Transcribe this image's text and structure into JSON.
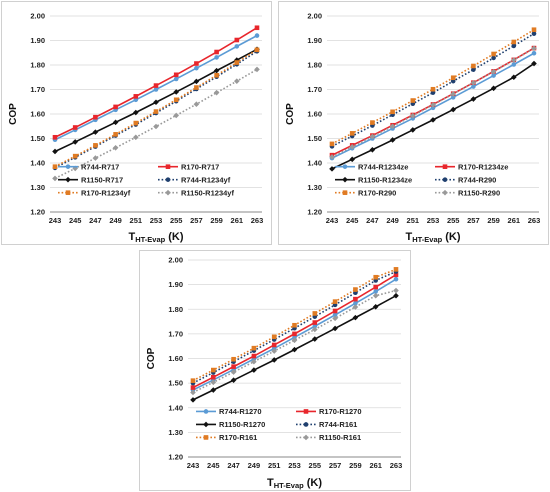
{
  "chart_data": [
    {
      "type": "line",
      "ylabel": "COP",
      "xlabel_main": "T",
      "xlabel_sub": "HT-Evap",
      "xlabel_unit": "(K)",
      "x": [
        243,
        245,
        247,
        249,
        251,
        253,
        255,
        257,
        259,
        261,
        263
      ],
      "ylim": [
        1.2,
        2.0
      ],
      "yticks": [
        "1.20",
        "1.30",
        "1.40",
        "1.50",
        "1.60",
        "1.70",
        "1.80",
        "1.90",
        "2.00"
      ],
      "grid": true,
      "legend": "inside-lower-right",
      "series": [
        {
          "name": "R744-R717",
          "color": "#5b9bd5",
          "style": "solid",
          "marker": "circle",
          "values": [
            1.495,
            1.535,
            1.576,
            1.617,
            1.658,
            1.7,
            1.743,
            1.787,
            1.831,
            1.876,
            1.92
          ]
        },
        {
          "name": "R170-R717",
          "color": "#e8262c",
          "style": "solid",
          "marker": "square",
          "values": [
            1.505,
            1.545,
            1.587,
            1.629,
            1.672,
            1.716,
            1.76,
            1.806,
            1.853,
            1.902,
            1.952
          ]
        },
        {
          "name": "R1150-R717",
          "color": "#111111",
          "style": "solid",
          "marker": "diamond",
          "values": [
            1.447,
            1.486,
            1.526,
            1.566,
            1.606,
            1.648,
            1.69,
            1.733,
            1.777,
            1.82,
            1.864
          ]
        },
        {
          "name": "R744-R1234yf",
          "color": "#1f3f6e",
          "style": "dotted",
          "marker": "circle",
          "values": [
            1.38,
            1.423,
            1.467,
            1.512,
            1.557,
            1.604,
            1.652,
            1.702,
            1.752,
            1.803,
            1.856
          ]
        },
        {
          "name": "R170-R1234yf",
          "color": "#e07b23",
          "style": "dotted",
          "marker": "square",
          "values": [
            1.385,
            1.428,
            1.472,
            1.517,
            1.563,
            1.61,
            1.658,
            1.708,
            1.758,
            1.81,
            1.862
          ]
        },
        {
          "name": "R1150-R1234yf",
          "color": "#999999",
          "style": "dotted",
          "marker": "diamond",
          "values": [
            1.337,
            1.378,
            1.42,
            1.462,
            1.505,
            1.549,
            1.594,
            1.64,
            1.687,
            1.734,
            1.782
          ]
        }
      ]
    },
    {
      "type": "line",
      "ylabel": "COP",
      "xlabel_main": "T",
      "xlabel_sub": "HT-Evap",
      "xlabel_unit": "(K)",
      "x": [
        243,
        245,
        247,
        249,
        251,
        253,
        255,
        257,
        259,
        261,
        263
      ],
      "ylim": [
        1.2,
        2.0
      ],
      "yticks": [
        "1.20",
        "1.30",
        "1.40",
        "1.50",
        "1.60",
        "1.70",
        "1.80",
        "1.90",
        "2.00"
      ],
      "grid": true,
      "legend": "inside-lower-right",
      "series": [
        {
          "name": "R744-R1234ze",
          "color": "#5b9bd5",
          "style": "solid",
          "marker": "circle",
          "values": [
            1.42,
            1.46,
            1.5,
            1.541,
            1.582,
            1.625,
            1.668,
            1.712,
            1.757,
            1.802,
            1.848
          ]
        },
        {
          "name": "R170-R1234ze",
          "color": "#e8262c",
          "style": "solid",
          "marker": "square",
          "values": [
            1.432,
            1.472,
            1.512,
            1.554,
            1.596,
            1.639,
            1.683,
            1.728,
            1.774,
            1.821,
            1.869
          ]
        },
        {
          "name": "R1150-R1234ze",
          "color": "#111111",
          "style": "solid",
          "marker": "diamond",
          "values": [
            1.376,
            1.415,
            1.454,
            1.494,
            1.535,
            1.576,
            1.618,
            1.661,
            1.705,
            1.75,
            1.806
          ]
        },
        {
          "name": "R744-R290",
          "color": "#1f3f6e",
          "style": "dotted",
          "marker": "circle",
          "values": [
            1.468,
            1.51,
            1.553,
            1.597,
            1.642,
            1.687,
            1.734,
            1.781,
            1.829,
            1.878,
            1.928
          ]
        },
        {
          "name": "R170-R290",
          "color": "#e07b23",
          "style": "dotted",
          "marker": "square",
          "values": [
            1.478,
            1.521,
            1.565,
            1.609,
            1.655,
            1.701,
            1.748,
            1.796,
            1.845,
            1.894,
            1.944
          ]
        },
        {
          "name": "R1150-R290",
          "color": "#999999",
          "style": "dotted",
          "marker": "diamond",
          "values": [
            1.425,
            1.466,
            1.508,
            1.55,
            1.593,
            1.637,
            1.682,
            1.727,
            1.773,
            1.82,
            1.868
          ]
        }
      ]
    },
    {
      "type": "line",
      "ylabel": "COP",
      "xlabel_main": "T",
      "xlabel_sub": "HT-Evap",
      "xlabel_unit": "(K)",
      "x": [
        243,
        245,
        247,
        249,
        251,
        253,
        255,
        257,
        259,
        261,
        263
      ],
      "ylim": [
        1.2,
        2.0
      ],
      "yticks": [
        "1.20",
        "1.30",
        "1.40",
        "1.50",
        "1.60",
        "1.70",
        "1.80",
        "1.90",
        "2.00"
      ],
      "grid": true,
      "legend": "inside-lower-right",
      "series": [
        {
          "name": "R744-R1270",
          "color": "#5b9bd5",
          "style": "solid",
          "marker": "circle",
          "values": [
            1.472,
            1.513,
            1.555,
            1.598,
            1.641,
            1.686,
            1.731,
            1.777,
            1.824,
            1.872,
            1.922
          ]
        },
        {
          "name": "R170-R1270",
          "color": "#e8262c",
          "style": "solid",
          "marker": "square",
          "values": [
            1.482,
            1.524,
            1.567,
            1.61,
            1.655,
            1.7,
            1.746,
            1.793,
            1.841,
            1.89,
            1.94
          ]
        },
        {
          "name": "R1150-R1270",
          "color": "#111111",
          "style": "solid",
          "marker": "diamond",
          "values": [
            1.432,
            1.472,
            1.512,
            1.553,
            1.594,
            1.636,
            1.679,
            1.722,
            1.766,
            1.81,
            1.855
          ]
        },
        {
          "name": "R744-R161",
          "color": "#1f3f6e",
          "style": "dotted",
          "marker": "circle",
          "values": [
            1.5,
            1.543,
            1.587,
            1.632,
            1.677,
            1.723,
            1.77,
            1.818,
            1.867,
            1.917,
            1.953
          ]
        },
        {
          "name": "R170-R161",
          "color": "#e07b23",
          "style": "dotted",
          "marker": "square",
          "values": [
            1.51,
            1.553,
            1.597,
            1.642,
            1.688,
            1.735,
            1.783,
            1.831,
            1.88,
            1.93,
            1.962
          ]
        },
        {
          "name": "R1150-R161",
          "color": "#999999",
          "style": "dotted",
          "marker": "diamond",
          "values": [
            1.462,
            1.503,
            1.545,
            1.587,
            1.63,
            1.674,
            1.718,
            1.763,
            1.809,
            1.855,
            1.876
          ]
        }
      ]
    }
  ]
}
